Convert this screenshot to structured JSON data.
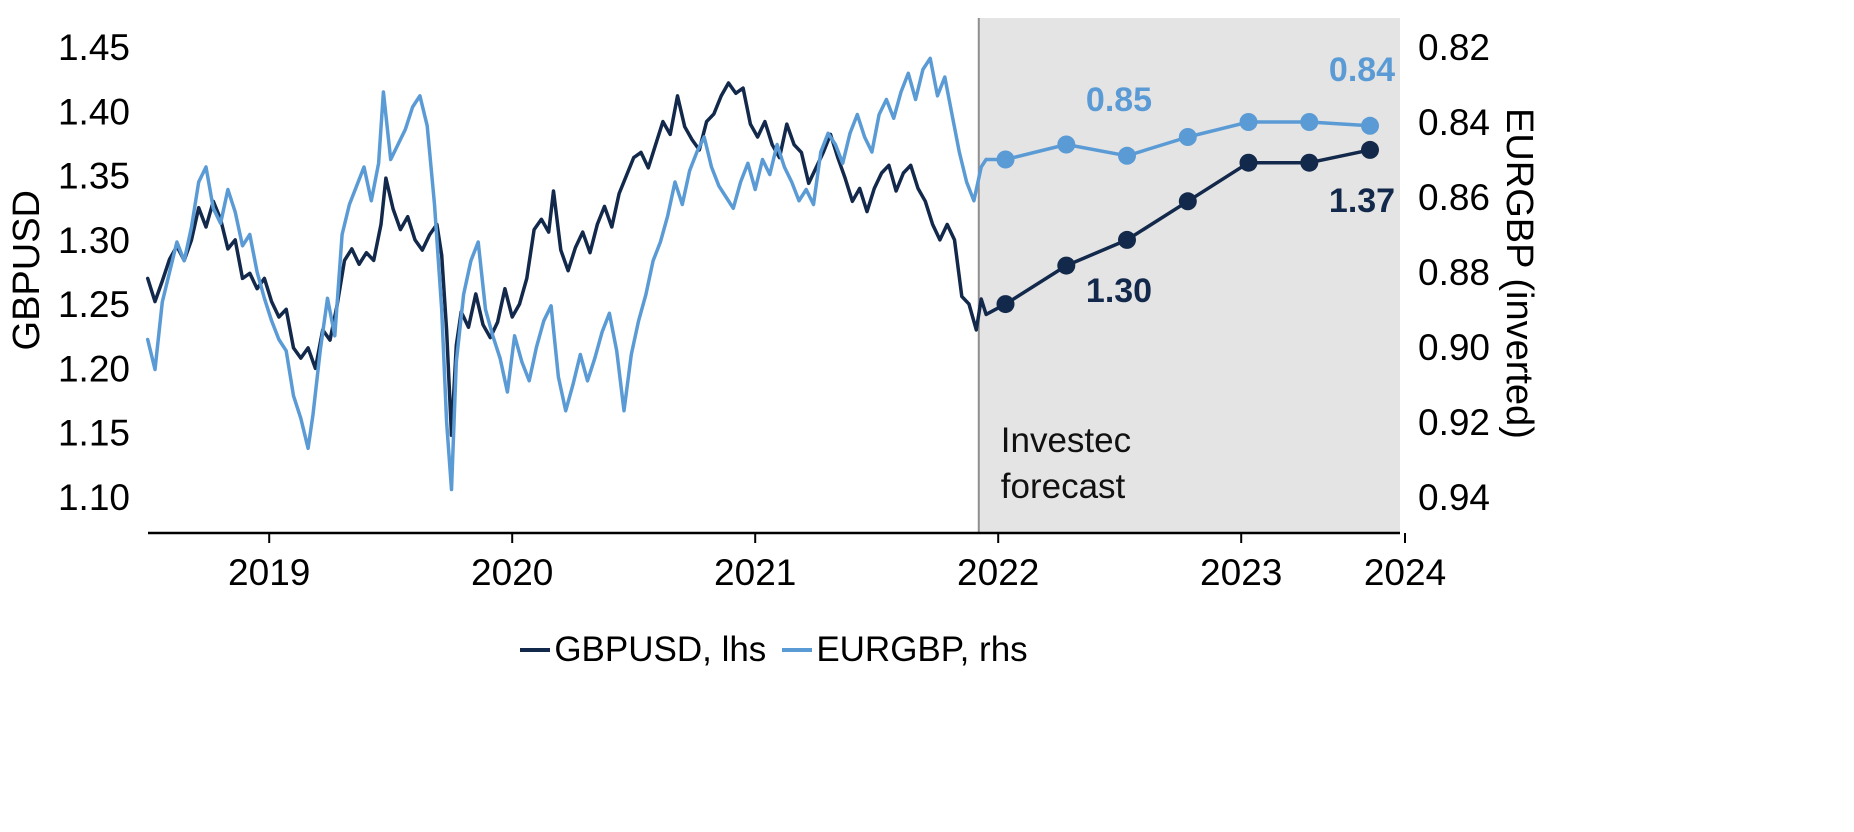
{
  "chart_data": {
    "type": "line",
    "title": "",
    "x_axis": {
      "tick_labels": [
        "2019",
        "2020",
        "2021",
        "2022",
        "2023",
        "2024"
      ],
      "range": [
        2018.97,
        2024.15
      ]
    },
    "left_axis": {
      "title": "GBPUSD",
      "tick_labels": [
        "1.45",
        "1.40",
        "1.35",
        "1.30",
        "1.25",
        "1.20",
        "1.15",
        "1.10"
      ],
      "range": [
        1.1,
        1.45
      ]
    },
    "right_axis": {
      "title": "EURGBP (inverted)",
      "tick_labels": [
        "0.82",
        "0.84",
        "0.86",
        "0.88",
        "0.90",
        "0.92",
        "0.94"
      ],
      "range": [
        0.82,
        0.94
      ],
      "inverted": true
    },
    "forecast_region": {
      "start_x": 2022.39,
      "label_lines": [
        "Investec",
        "forecast"
      ],
      "fill": "#e4e4e4",
      "edge_color": "#8f8f8f"
    },
    "legend": [
      {
        "label": "GBPUSD, lhs",
        "color": "#13294b"
      },
      {
        "label": "EURGBP, rhs",
        "color": "#5b9bd5"
      }
    ],
    "series": [
      {
        "id": "gbpusd",
        "name": "GBPUSD, lhs",
        "axis": "left",
        "color": "#13294b",
        "label_side": "below",
        "history": [
          [
            2018.97,
            1.27
          ],
          [
            2019,
            1.252
          ],
          [
            2019.03,
            1.268
          ],
          [
            2019.06,
            1.285
          ],
          [
            2019.09,
            1.295
          ],
          [
            2019.12,
            1.284
          ],
          [
            2019.15,
            1.3
          ],
          [
            2019.18,
            1.325
          ],
          [
            2019.21,
            1.31
          ],
          [
            2019.24,
            1.33
          ],
          [
            2019.27,
            1.316
          ],
          [
            2019.3,
            1.293
          ],
          [
            2019.33,
            1.3
          ],
          [
            2019.36,
            1.27
          ],
          [
            2019.39,
            1.274
          ],
          [
            2019.42,
            1.262
          ],
          [
            2019.45,
            1.27
          ],
          [
            2019.48,
            1.252
          ],
          [
            2019.51,
            1.24
          ],
          [
            2019.54,
            1.246
          ],
          [
            2019.57,
            1.216
          ],
          [
            2019.6,
            1.208
          ],
          [
            2019.63,
            1.216
          ],
          [
            2019.66,
            1.2
          ],
          [
            2019.69,
            1.23
          ],
          [
            2019.72,
            1.222
          ],
          [
            2019.75,
            1.25
          ],
          [
            2019.78,
            1.284
          ],
          [
            2019.81,
            1.293
          ],
          [
            2019.84,
            1.281
          ],
          [
            2019.87,
            1.29
          ],
          [
            2019.9,
            1.284
          ],
          [
            2019.93,
            1.312
          ],
          [
            2019.95,
            1.348
          ],
          [
            2019.98,
            1.324
          ],
          [
            2020.01,
            1.308
          ],
          [
            2020.04,
            1.318
          ],
          [
            2020.07,
            1.3
          ],
          [
            2020.1,
            1.292
          ],
          [
            2020.13,
            1.304
          ],
          [
            2020.16,
            1.312
          ],
          [
            2020.18,
            1.288
          ],
          [
            2020.2,
            1.23
          ],
          [
            2020.22,
            1.148
          ],
          [
            2020.24,
            1.218
          ],
          [
            2020.26,
            1.244
          ],
          [
            2020.29,
            1.232
          ],
          [
            2020.32,
            1.258
          ],
          [
            2020.35,
            1.234
          ],
          [
            2020.38,
            1.224
          ],
          [
            2020.41,
            1.236
          ],
          [
            2020.44,
            1.262
          ],
          [
            2020.47,
            1.24
          ],
          [
            2020.5,
            1.25
          ],
          [
            2020.53,
            1.27
          ],
          [
            2020.56,
            1.308
          ],
          [
            2020.59,
            1.316
          ],
          [
            2020.62,
            1.306
          ],
          [
            2020.64,
            1.338
          ],
          [
            2020.67,
            1.292
          ],
          [
            2020.7,
            1.276
          ],
          [
            2020.73,
            1.294
          ],
          [
            2020.76,
            1.306
          ],
          [
            2020.79,
            1.29
          ],
          [
            2020.82,
            1.312
          ],
          [
            2020.85,
            1.326
          ],
          [
            2020.88,
            1.31
          ],
          [
            2020.91,
            1.336
          ],
          [
            2020.94,
            1.35
          ],
          [
            2020.97,
            1.364
          ],
          [
            2021,
            1.368
          ],
          [
            2021.03,
            1.356
          ],
          [
            2021.06,
            1.374
          ],
          [
            2021.09,
            1.392
          ],
          [
            2021.12,
            1.382
          ],
          [
            2021.15,
            1.412
          ],
          [
            2021.18,
            1.388
          ],
          [
            2021.21,
            1.378
          ],
          [
            2021.24,
            1.37
          ],
          [
            2021.27,
            1.392
          ],
          [
            2021.3,
            1.398
          ],
          [
            2021.33,
            1.412
          ],
          [
            2021.36,
            1.422
          ],
          [
            2021.39,
            1.414
          ],
          [
            2021.42,
            1.418
          ],
          [
            2021.45,
            1.39
          ],
          [
            2021.48,
            1.38
          ],
          [
            2021.51,
            1.392
          ],
          [
            2021.54,
            1.374
          ],
          [
            2021.57,
            1.364
          ],
          [
            2021.6,
            1.39
          ],
          [
            2021.63,
            1.374
          ],
          [
            2021.66,
            1.368
          ],
          [
            2021.69,
            1.344
          ],
          [
            2021.72,
            1.356
          ],
          [
            2021.75,
            1.368
          ],
          [
            2021.78,
            1.382
          ],
          [
            2021.81,
            1.364
          ],
          [
            2021.84,
            1.348
          ],
          [
            2021.87,
            1.33
          ],
          [
            2021.9,
            1.34
          ],
          [
            2021.93,
            1.322
          ],
          [
            2021.96,
            1.34
          ],
          [
            2021.99,
            1.352
          ],
          [
            2022.02,
            1.358
          ],
          [
            2022.05,
            1.338
          ],
          [
            2022.08,
            1.352
          ],
          [
            2022.11,
            1.358
          ],
          [
            2022.14,
            1.34
          ],
          [
            2022.17,
            1.33
          ],
          [
            2022.2,
            1.312
          ],
          [
            2022.23,
            1.3
          ],
          [
            2022.26,
            1.312
          ],
          [
            2022.29,
            1.3
          ],
          [
            2022.32,
            1.256
          ],
          [
            2022.35,
            1.25
          ],
          [
            2022.38,
            1.23
          ],
          [
            2022.4,
            1.254
          ],
          [
            2022.42,
            1.242
          ]
        ],
        "forecast": {
          "x": [
            2022.5,
            2022.75,
            2023.0,
            2023.25,
            2023.5,
            2023.75,
            2024.0
          ],
          "y": [
            1.25,
            1.28,
            1.3,
            1.33,
            1.36,
            1.36,
            1.37
          ],
          "point_labels": [
            null,
            null,
            "1.30",
            null,
            null,
            null,
            "1.37"
          ]
        }
      },
      {
        "id": "eurgbp",
        "name": "EURGBP, rhs",
        "axis": "right",
        "color": "#5b9bd5",
        "label_side": "above",
        "history": [
          [
            2018.97,
            0.898
          ],
          [
            2019,
            0.906
          ],
          [
            2019.03,
            0.888
          ],
          [
            2019.06,
            0.88
          ],
          [
            2019.09,
            0.872
          ],
          [
            2019.12,
            0.877
          ],
          [
            2019.15,
            0.868
          ],
          [
            2019.18,
            0.856
          ],
          [
            2019.21,
            0.852
          ],
          [
            2019.24,
            0.863
          ],
          [
            2019.27,
            0.867
          ],
          [
            2019.3,
            0.858
          ],
          [
            2019.33,
            0.864
          ],
          [
            2019.36,
            0.873
          ],
          [
            2019.39,
            0.87
          ],
          [
            2019.42,
            0.88
          ],
          [
            2019.45,
            0.887
          ],
          [
            2019.48,
            0.893
          ],
          [
            2019.51,
            0.898
          ],
          [
            2019.54,
            0.901
          ],
          [
            2019.57,
            0.913
          ],
          [
            2019.6,
            0.919
          ],
          [
            2019.63,
            0.927
          ],
          [
            2019.65,
            0.918
          ],
          [
            2019.68,
            0.901
          ],
          [
            2019.71,
            0.887
          ],
          [
            2019.74,
            0.897
          ],
          [
            2019.77,
            0.87
          ],
          [
            2019.8,
            0.862
          ],
          [
            2019.83,
            0.857
          ],
          [
            2019.86,
            0.852
          ],
          [
            2019.89,
            0.861
          ],
          [
            2019.92,
            0.851
          ],
          [
            2019.94,
            0.832
          ],
          [
            2019.97,
            0.85
          ],
          [
            2020,
            0.846
          ],
          [
            2020.03,
            0.842
          ],
          [
            2020.06,
            0.836
          ],
          [
            2020.09,
            0.833
          ],
          [
            2020.12,
            0.841
          ],
          [
            2020.15,
            0.862
          ],
          [
            2020.18,
            0.89
          ],
          [
            2020.2,
            0.92
          ],
          [
            2020.22,
            0.938
          ],
          [
            2020.24,
            0.904
          ],
          [
            2020.27,
            0.886
          ],
          [
            2020.3,
            0.877
          ],
          [
            2020.33,
            0.872
          ],
          [
            2020.36,
            0.89
          ],
          [
            2020.39,
            0.897
          ],
          [
            2020.42,
            0.903
          ],
          [
            2020.45,
            0.912
          ],
          [
            2020.48,
            0.897
          ],
          [
            2020.51,
            0.904
          ],
          [
            2020.54,
            0.909
          ],
          [
            2020.57,
            0.9
          ],
          [
            2020.6,
            0.893
          ],
          [
            2020.63,
            0.889
          ],
          [
            2020.66,
            0.908
          ],
          [
            2020.69,
            0.917
          ],
          [
            2020.72,
            0.91
          ],
          [
            2020.75,
            0.902
          ],
          [
            2020.78,
            0.909
          ],
          [
            2020.81,
            0.903
          ],
          [
            2020.84,
            0.896
          ],
          [
            2020.87,
            0.891
          ],
          [
            2020.9,
            0.901
          ],
          [
            2020.93,
            0.917
          ],
          [
            2020.96,
            0.902
          ],
          [
            2020.99,
            0.893
          ],
          [
            2021.02,
            0.886
          ],
          [
            2021.05,
            0.877
          ],
          [
            2021.08,
            0.872
          ],
          [
            2021.11,
            0.865
          ],
          [
            2021.14,
            0.856
          ],
          [
            2021.17,
            0.862
          ],
          [
            2021.2,
            0.853
          ],
          [
            2021.23,
            0.848
          ],
          [
            2021.26,
            0.844
          ],
          [
            2021.29,
            0.852
          ],
          [
            2021.32,
            0.857
          ],
          [
            2021.35,
            0.86
          ],
          [
            2021.38,
            0.863
          ],
          [
            2021.41,
            0.856
          ],
          [
            2021.44,
            0.851
          ],
          [
            2021.47,
            0.858
          ],
          [
            2021.5,
            0.85
          ],
          [
            2021.53,
            0.854
          ],
          [
            2021.56,
            0.846
          ],
          [
            2021.59,
            0.852
          ],
          [
            2021.62,
            0.856
          ],
          [
            2021.65,
            0.861
          ],
          [
            2021.68,
            0.858
          ],
          [
            2021.71,
            0.862
          ],
          [
            2021.74,
            0.848
          ],
          [
            2021.77,
            0.843
          ],
          [
            2021.8,
            0.846
          ],
          [
            2021.83,
            0.851
          ],
          [
            2021.86,
            0.843
          ],
          [
            2021.89,
            0.838
          ],
          [
            2021.92,
            0.844
          ],
          [
            2021.95,
            0.848
          ],
          [
            2021.98,
            0.838
          ],
          [
            2022.01,
            0.834
          ],
          [
            2022.04,
            0.839
          ],
          [
            2022.07,
            0.832
          ],
          [
            2022.1,
            0.827
          ],
          [
            2022.13,
            0.834
          ],
          [
            2022.16,
            0.826
          ],
          [
            2022.19,
            0.823
          ],
          [
            2022.22,
            0.833
          ],
          [
            2022.25,
            0.828
          ],
          [
            2022.28,
            0.838
          ],
          [
            2022.31,
            0.848
          ],
          [
            2022.34,
            0.856
          ],
          [
            2022.37,
            0.861
          ],
          [
            2022.4,
            0.852
          ],
          [
            2022.42,
            0.85
          ]
        ],
        "forecast": {
          "x": [
            2022.5,
            2022.75,
            2023.0,
            2023.25,
            2023.5,
            2023.75,
            2024.0
          ],
          "y": [
            0.85,
            0.846,
            0.849,
            0.844,
            0.84,
            0.84,
            0.841
          ],
          "point_labels": [
            null,
            null,
            "0.85",
            null,
            null,
            null,
            "0.84"
          ]
        }
      }
    ]
  }
}
